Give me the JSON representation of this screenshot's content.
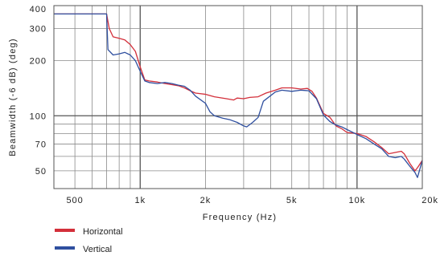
{
  "chart_data": {
    "type": "line",
    "xlabel": "Frequency  (Hz)",
    "ylabel": "Beamwidth (-6 dB)  (deg)",
    "x_scale": "log",
    "y_scale": "log",
    "xlim": [
      400,
      20000
    ],
    "ylim": [
      40,
      400
    ],
    "grid": true,
    "legend_position": "bottom-left",
    "x_ticks": [
      {
        "value": 500,
        "label": "500"
      },
      {
        "value": 1000,
        "label": "1k"
      },
      {
        "value": 2000,
        "label": "2k"
      },
      {
        "value": 5000,
        "label": "5k"
      },
      {
        "value": 10000,
        "label": "10k"
      },
      {
        "value": 20000,
        "label": "20k"
      }
    ],
    "y_ticks": [
      {
        "value": 50,
        "label": "50"
      },
      {
        "value": 70,
        "label": "70"
      },
      {
        "value": 100,
        "label": "100"
      },
      {
        "value": 200,
        "label": "200"
      },
      {
        "value": 300,
        "label": "300"
      },
      {
        "value": 400,
        "label": "400"
      }
    ],
    "series": [
      {
        "name": "Horizontal",
        "color": "#d32f3a",
        "points": [
          [
            400,
            360
          ],
          [
            700,
            360
          ],
          [
            720,
            300
          ],
          [
            750,
            270
          ],
          [
            800,
            265
          ],
          [
            850,
            260
          ],
          [
            900,
            245
          ],
          [
            950,
            225
          ],
          [
            1000,
            185
          ],
          [
            1050,
            157
          ],
          [
            1100,
            155
          ],
          [
            1200,
            153
          ],
          [
            1300,
            150
          ],
          [
            1400,
            148
          ],
          [
            1500,
            146
          ],
          [
            1600,
            142
          ],
          [
            1700,
            137
          ],
          [
            1800,
            133
          ],
          [
            2000,
            131
          ],
          [
            2200,
            127
          ],
          [
            2500,
            124
          ],
          [
            2700,
            122
          ],
          [
            2800,
            125
          ],
          [
            3000,
            124
          ],
          [
            3200,
            126
          ],
          [
            3500,
            127
          ],
          [
            3800,
            133
          ],
          [
            4200,
            138
          ],
          [
            4500,
            142
          ],
          [
            5000,
            142
          ],
          [
            5500,
            140
          ],
          [
            5900,
            141
          ],
          [
            6200,
            136
          ],
          [
            6500,
            125
          ],
          [
            7000,
            103
          ],
          [
            7500,
            98
          ],
          [
            8000,
            88
          ],
          [
            8500,
            85
          ],
          [
            9000,
            81
          ],
          [
            10000,
            80
          ],
          [
            11000,
            77
          ],
          [
            12000,
            72
          ],
          [
            13000,
            67
          ],
          [
            14000,
            62
          ],
          [
            15000,
            63
          ],
          [
            16000,
            64
          ],
          [
            16500,
            62
          ],
          [
            17500,
            55
          ],
          [
            18500,
            50
          ],
          [
            19000,
            52
          ],
          [
            20000,
            57
          ]
        ]
      },
      {
        "name": "Vertical",
        "color": "#2f4f9f",
        "points": [
          [
            400,
            360
          ],
          [
            700,
            360
          ],
          [
            710,
            230
          ],
          [
            750,
            215
          ],
          [
            800,
            218
          ],
          [
            850,
            222
          ],
          [
            900,
            215
          ],
          [
            950,
            200
          ],
          [
            1000,
            175
          ],
          [
            1050,
            155
          ],
          [
            1100,
            152
          ],
          [
            1200,
            150
          ],
          [
            1300,
            152
          ],
          [
            1400,
            150
          ],
          [
            1500,
            147
          ],
          [
            1600,
            145
          ],
          [
            1700,
            138
          ],
          [
            1800,
            128
          ],
          [
            2000,
            117
          ],
          [
            2100,
            105
          ],
          [
            2200,
            100
          ],
          [
            2400,
            97
          ],
          [
            2600,
            95
          ],
          [
            2800,
            92
          ],
          [
            3000,
            88
          ],
          [
            3100,
            87
          ],
          [
            3300,
            92
          ],
          [
            3500,
            98
          ],
          [
            3700,
            120
          ],
          [
            4200,
            135
          ],
          [
            4500,
            138
          ],
          [
            5000,
            136
          ],
          [
            5500,
            138
          ],
          [
            6000,
            137
          ],
          [
            6500,
            124
          ],
          [
            7000,
            101
          ],
          [
            7500,
            93
          ],
          [
            8000,
            89
          ],
          [
            8500,
            87
          ],
          [
            9000,
            84
          ],
          [
            10000,
            79
          ],
          [
            11000,
            75
          ],
          [
            12000,
            70
          ],
          [
            13000,
            66
          ],
          [
            14000,
            60
          ],
          [
            15000,
            59
          ],
          [
            16000,
            60
          ],
          [
            16500,
            58
          ],
          [
            17500,
            53
          ],
          [
            18500,
            49
          ],
          [
            19000,
            46
          ],
          [
            20000,
            57
          ]
        ]
      }
    ]
  },
  "legend": {
    "horizontal_label": "Horizontal",
    "vertical_label": "Vertical"
  }
}
